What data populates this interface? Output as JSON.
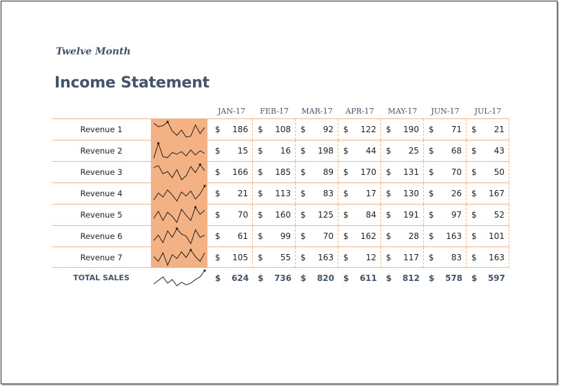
{
  "header": {
    "subtitle": "Twelve Month",
    "title": "Income Statement"
  },
  "months": [
    "JAN-17",
    "FEB-17",
    "MAR-17",
    "APR-17",
    "MAY-17",
    "JUN-17",
    "JUL-17"
  ],
  "currency": "$",
  "rows": [
    {
      "label": "Revenue 1",
      "values": [
        186,
        108,
        92,
        122,
        190,
        71,
        21
      ]
    },
    {
      "label": "Revenue 2",
      "values": [
        15,
        16,
        198,
        44,
        25,
        68,
        43
      ]
    },
    {
      "label": "Revenue 3",
      "values": [
        166,
        185,
        89,
        170,
        131,
        70,
        50
      ]
    },
    {
      "label": "Revenue 4",
      "values": [
        21,
        113,
        83,
        17,
        130,
        26,
        167
      ]
    },
    {
      "label": "Revenue 5",
      "values": [
        70,
        160,
        125,
        84,
        191,
        97,
        52
      ]
    },
    {
      "label": "Revenue 6",
      "values": [
        61,
        99,
        70,
        162,
        28,
        163,
        101
      ]
    },
    {
      "label": "Revenue 7",
      "values": [
        105,
        55,
        163,
        12,
        117,
        83,
        163
      ]
    }
  ],
  "total": {
    "label": "TOTAL SALES",
    "values": [
      624,
      736,
      820,
      611,
      812,
      578,
      597
    ]
  },
  "sparklines": {
    "rows": [
      [
        180,
        140,
        150,
        195,
        90,
        40,
        100,
        20,
        30,
        160,
        60,
        130
      ],
      [
        10,
        190,
        30,
        20,
        80,
        60,
        90,
        40,
        110,
        50,
        100,
        70
      ],
      [
        160,
        180,
        100,
        120,
        60,
        140,
        40,
        80,
        170,
        110,
        190,
        130
      ],
      [
        30,
        100,
        60,
        130,
        80,
        20,
        110,
        70,
        120,
        40,
        90,
        170
      ],
      [
        80,
        150,
        60,
        140,
        100,
        40,
        170,
        110,
        60,
        190,
        120,
        160
      ],
      [
        60,
        110,
        40,
        150,
        90,
        170,
        120,
        100,
        30,
        160,
        90,
        110
      ],
      [
        110,
        60,
        150,
        20,
        130,
        90,
        160,
        100,
        180,
        110,
        60,
        150
      ]
    ],
    "total": [
      600,
      680,
      760,
      620,
      700,
      560,
      640,
      580,
      620,
      700,
      760,
      900
    ],
    "line_color": "#1f1f1f",
    "cell_color": "#f4b183"
  }
}
